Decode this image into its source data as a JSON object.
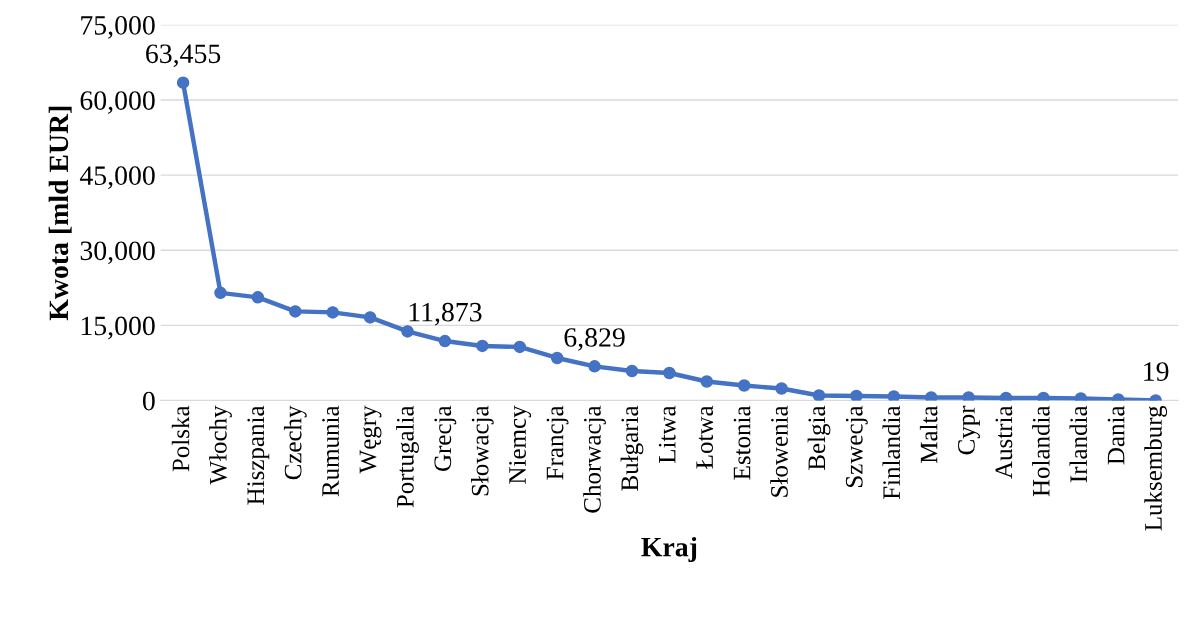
{
  "chart_data": {
    "type": "line",
    "xlabel": "Kraj",
    "ylabel": "Kwota [mld EUR]",
    "categories": [
      "Polska",
      "Włochy",
      "Hiszpania",
      "Czechy",
      "Rumunia",
      "Węgry",
      "Portugalia",
      "Grecja",
      "Słowacja",
      "Niemcy",
      "Francja",
      "Chorwacja",
      "Bułgaria",
      "Litwa",
      "Łotwa",
      "Estonia",
      "Słowenia",
      "Belgia",
      "Szwecja",
      "Finlandia",
      "Malta",
      "Cypr",
      "Austria",
      "Holandia",
      "Irlandia",
      "Dania",
      "Luksemburg"
    ],
    "series": [
      {
        "color": "#4472c4",
        "values": [
          63455,
          21500,
          20600,
          17800,
          17600,
          16600,
          13800,
          11873,
          10900,
          10700,
          8500,
          6829,
          5900,
          5500,
          3800,
          3000,
          2400,
          1000,
          900,
          800,
          600,
          600,
          500,
          500,
          400,
          200,
          19
        ],
        "value_labels": [
          "63,455",
          null,
          null,
          null,
          null,
          null,
          null,
          "11,873",
          null,
          null,
          null,
          "6,829",
          null,
          null,
          null,
          null,
          null,
          null,
          null,
          null,
          null,
          null,
          null,
          null,
          null,
          null,
          "19"
        ]
      }
    ],
    "ylim": [
      0,
      75000
    ],
    "yticks": [
      {
        "value": 0,
        "label": "0"
      },
      {
        "value": 15000,
        "label": "15,000"
      },
      {
        "value": 30000,
        "label": "30,000"
      },
      {
        "value": 45000,
        "label": "45,000"
      },
      {
        "value": 60000,
        "label": "60,000"
      },
      {
        "value": 75000,
        "label": "75,000"
      }
    ],
    "grid": "y",
    "marker": "circle",
    "line_style": "solid",
    "legend": false
  }
}
